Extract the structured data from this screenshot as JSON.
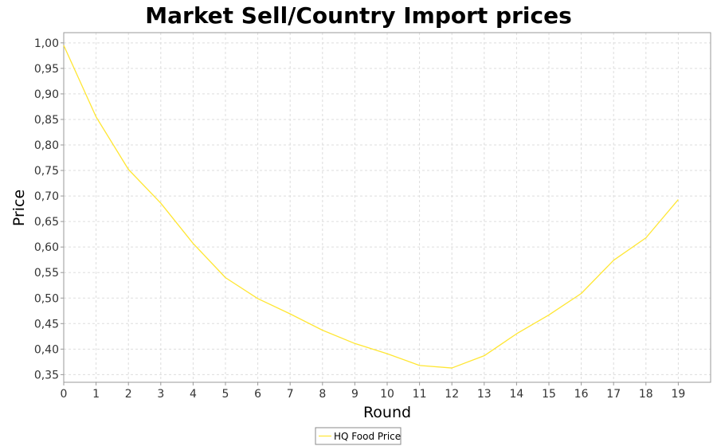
{
  "chart_data": {
    "type": "line",
    "title": "Market Sell/Country Import prices",
    "xlabel": "Round",
    "ylabel": "Price",
    "xlim": [
      0,
      20
    ],
    "ylim": [
      0.335,
      1.02
    ],
    "x_ticks": [
      0,
      1,
      2,
      3,
      4,
      5,
      6,
      7,
      8,
      9,
      10,
      11,
      12,
      13,
      14,
      15,
      16,
      17,
      18,
      19
    ],
    "y_ticks": [
      "0,35",
      "0,40",
      "0,45",
      "0,50",
      "0,55",
      "0,60",
      "0,65",
      "0,70",
      "0,75",
      "0,80",
      "0,85",
      "0,90",
      "0,95",
      "1,00"
    ],
    "y_tick_values": [
      0.35,
      0.4,
      0.45,
      0.5,
      0.55,
      0.6,
      0.65,
      0.7,
      0.75,
      0.8,
      0.85,
      0.9,
      0.95,
      1.0
    ],
    "grid": true,
    "legend_position": "bottom-center",
    "series": [
      {
        "name": "HQ Food Price",
        "color": "#ffe633",
        "x": [
          0,
          1,
          2,
          3,
          4,
          5,
          6,
          7,
          8,
          9,
          10,
          11,
          12,
          13,
          14,
          15,
          16,
          17,
          18,
          19
        ],
        "y": [
          0.995,
          0.855,
          0.752,
          0.686,
          0.607,
          0.54,
          0.499,
          0.469,
          0.437,
          0.411,
          0.391,
          0.368,
          0.363,
          0.387,
          0.43,
          0.467,
          0.509,
          0.574,
          0.618,
          0.693
        ]
      }
    ]
  }
}
